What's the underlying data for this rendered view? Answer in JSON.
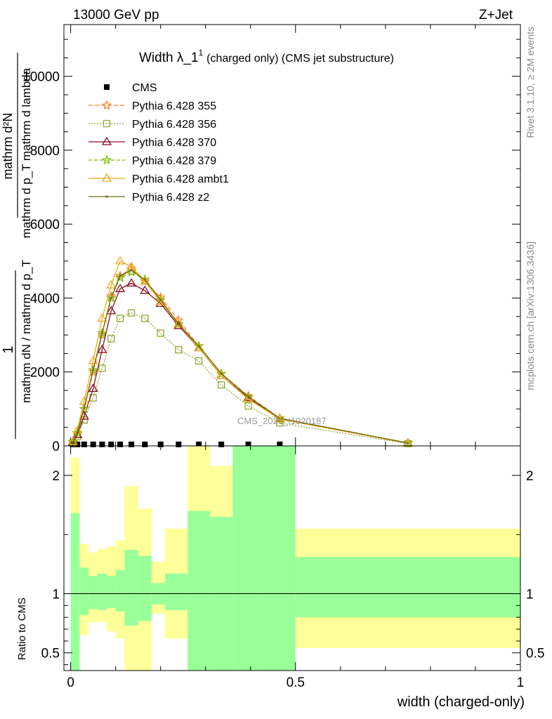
{
  "header": {
    "left": "13000 GeV pp",
    "right": "Z+Jet"
  },
  "side_labels": {
    "rivet": "Rivet 3.1.10, ≥ 2M events",
    "mcplots": "mcplots.cern.ch [arXiv:1306.3436]"
  },
  "colors": {
    "cms": "#000000",
    "p355": "#ff7f27",
    "p356": "#8fa832",
    "p370": "#8b0a22",
    "p379": "#7ab800",
    "ambt1": "#f0a81c",
    "z2": "#6b6b14",
    "band_inner": "#99ff99",
    "band_outer": "#ffff99"
  },
  "chart_data": [
    {
      "type": "line",
      "title": "Width λ_1",
      "title_sup": "1",
      "subtitle": "(charged only) (CMS jet substructure)",
      "ylabel_top": "1",
      "ylabel_num": "mathrm d²N",
      "ylabel_den1": "mathrm d p_T mathrm d lambda",
      "ylabel_den2": "mathrm dN / mathrm d p_T",
      "ylabel_frac_num": "mathrm dN",
      "watermark": "CMS_2021_I1920187",
      "xlim": [
        -0.015,
        1.0
      ],
      "ylim": [
        0,
        11400
      ],
      "yticks": [
        0,
        2000,
        4000,
        6000,
        8000,
        10000
      ],
      "ytick_labels": [
        "0",
        "2000",
        "4000",
        "6000",
        "8000",
        "10000"
      ],
      "x": [
        0.005,
        0.015,
        0.03,
        0.05,
        0.07,
        0.09,
        0.11,
        0.135,
        0.165,
        0.2,
        0.24,
        0.285,
        0.335,
        0.395,
        0.465,
        0.75
      ],
      "cms_values": [
        40,
        40,
        40,
        40,
        40,
        40,
        40,
        40,
        40,
        40,
        40,
        40,
        40,
        40,
        40
      ],
      "series": [
        {
          "name": "CMS",
          "key": "cms",
          "marker": "square",
          "dash": "none",
          "x": [
            0.005,
            0.015,
            0.03,
            0.05,
            0.07,
            0.09,
            0.11,
            0.135,
            0.165,
            0.2,
            0.24,
            0.285,
            0.335,
            0.395,
            0.465
          ],
          "values": [
            40,
            40,
            40,
            40,
            40,
            40,
            40,
            40,
            40,
            40,
            40,
            40,
            40,
            40,
            40
          ]
        },
        {
          "name": "Pythia 6.428 355",
          "key": "p355",
          "marker": "star",
          "dash": "6,3",
          "values": [
            100,
            350,
            1000,
            2000,
            3000,
            4050,
            4600,
            4800,
            4450,
            4020,
            3400,
            2700,
            1950,
            1350,
            750,
            80
          ]
        },
        {
          "name": "Pythia 6.428 356",
          "key": "p356",
          "marker": "open-square",
          "dash": "2,2",
          "values": [
            80,
            250,
            700,
            1300,
            2100,
            2900,
            3450,
            3600,
            3450,
            3050,
            2600,
            2300,
            1650,
            1080,
            620,
            60
          ]
        },
        {
          "name": "Pythia 6.428 370",
          "key": "p370",
          "marker": "open-triangle",
          "dash": "none",
          "values": [
            90,
            300,
            800,
            1550,
            2600,
            3650,
            4250,
            4400,
            4200,
            3850,
            3250,
            2650,
            1900,
            1300,
            730,
            75
          ]
        },
        {
          "name": "Pythia 6.428 379",
          "key": "p379",
          "marker": "star",
          "dash": "5,3",
          "values": [
            100,
            350,
            1000,
            2050,
            3050,
            4000,
            4550,
            4700,
            4500,
            3950,
            3300,
            2700,
            1950,
            1320,
            740,
            78
          ]
        },
        {
          "name": "Pythia 6.428 ambt1",
          "key": "ambt1",
          "marker": "open-triangle",
          "dash": "none",
          "values": [
            120,
            420,
            1200,
            2300,
            3450,
            4350,
            5000,
            4850,
            4450,
            3900,
            3300,
            2650,
            1900,
            1270,
            720,
            72
          ]
        },
        {
          "name": "Pythia 6.428 z2",
          "key": "z2",
          "marker": "dot",
          "dash": "none",
          "values": [
            100,
            360,
            1020,
            2050,
            3050,
            4000,
            4600,
            4750,
            4500,
            3950,
            3300,
            2700,
            1960,
            1330,
            745,
            78
          ]
        }
      ]
    },
    {
      "type": "area",
      "ylabel": "Ratio to CMS",
      "xlabel": "width (charged-only)",
      "xlim": [
        -0.015,
        1.0
      ],
      "ylim": [
        0.35,
        2.25
      ],
      "xticks": [
        0,
        0.5,
        1
      ],
      "xtick_labels": [
        "0",
        "0.5",
        "1"
      ],
      "yticks": [
        0.5,
        1,
        2
      ],
      "ytick_labels": [
        "0.5",
        "1",
        "2"
      ],
      "bins": [
        {
          "lo": 0.0,
          "hi": 0.02,
          "in_lo": 0.35,
          "in_hi": 1.68,
          "out_lo": 0.35,
          "out_hi": 2.15
        },
        {
          "lo": 0.02,
          "hi": 0.04,
          "in_lo": 0.82,
          "in_hi": 1.22,
          "out_lo": 0.65,
          "out_hi": 1.42
        },
        {
          "lo": 0.04,
          "hi": 0.06,
          "in_lo": 0.87,
          "in_hi": 1.15,
          "out_lo": 0.76,
          "out_hi": 1.35
        },
        {
          "lo": 0.06,
          "hi": 0.08,
          "in_lo": 0.86,
          "in_hi": 1.17,
          "out_lo": 0.76,
          "out_hi": 1.38
        },
        {
          "lo": 0.08,
          "hi": 0.1,
          "in_lo": 0.88,
          "in_hi": 1.15,
          "out_lo": 0.68,
          "out_hi": 1.4
        },
        {
          "lo": 0.1,
          "hi": 0.12,
          "in_lo": 0.85,
          "in_hi": 1.2,
          "out_lo": 0.62,
          "out_hi": 1.45
        },
        {
          "lo": 0.12,
          "hi": 0.15,
          "in_lo": 0.73,
          "in_hi": 1.37,
          "out_lo": 0.35,
          "out_hi": 1.91
        },
        {
          "lo": 0.15,
          "hi": 0.18,
          "in_lo": 0.77,
          "in_hi": 1.32,
          "out_lo": 0.35,
          "out_hi": 1.72
        },
        {
          "lo": 0.18,
          "hi": 0.21,
          "in_lo": 0.91,
          "in_hi": 1.09,
          "out_lo": 0.83,
          "out_hi": 1.27
        },
        {
          "lo": 0.21,
          "hi": 0.26,
          "in_lo": 0.86,
          "in_hi": 1.17,
          "out_lo": 0.62,
          "out_hi": 1.55
        },
        {
          "lo": 0.26,
          "hi": 0.31,
          "in_lo": 0.35,
          "in_hi": 1.7,
          "out_lo": 0.35,
          "out_hi": 2.25
        },
        {
          "lo": 0.31,
          "hi": 0.36,
          "in_lo": 0.35,
          "in_hi": 1.65,
          "out_lo": 0.35,
          "out_hi": 2.08
        },
        {
          "lo": 0.36,
          "hi": 0.43,
          "in_lo": 0.35,
          "in_hi": 2.25,
          "out_lo": 0.35,
          "out_hi": 2.25
        },
        {
          "lo": 0.43,
          "hi": 0.5,
          "in_lo": 0.35,
          "in_hi": 2.25,
          "out_lo": 0.35,
          "out_hi": 2.25
        },
        {
          "lo": 0.5,
          "hi": 1.0,
          "in_lo": 0.8,
          "in_hi": 1.31,
          "out_lo": 0.54,
          "out_hi": 1.55
        }
      ]
    }
  ]
}
